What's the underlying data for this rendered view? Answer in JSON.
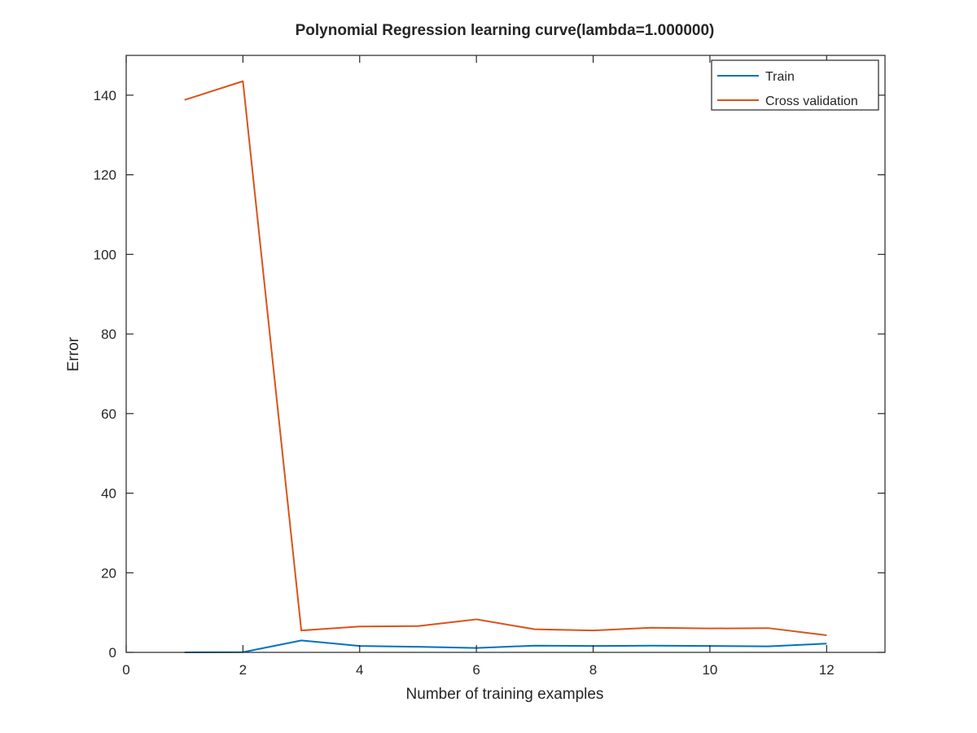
{
  "chart_data": {
    "type": "line",
    "title": "Polynomial Regression learning curve(lambda=1.000000)",
    "xlabel": "Number of training examples",
    "ylabel": "Error",
    "xlim": [
      0,
      13
    ],
    "ylim": [
      0,
      150
    ],
    "xticks": [
      0,
      2,
      4,
      6,
      8,
      10,
      12
    ],
    "yticks": [
      0,
      20,
      40,
      60,
      80,
      100,
      120,
      140
    ],
    "grid": false,
    "legend_position": "top-right",
    "x": [
      1,
      2,
      3,
      4,
      5,
      6,
      7,
      8,
      9,
      10,
      11,
      12
    ],
    "series": [
      {
        "name": "Train",
        "color": "#0072BD",
        "values": [
          0.0,
          0.05,
          3.0,
          1.6,
          1.4,
          1.1,
          1.7,
          1.6,
          1.7,
          1.6,
          1.5,
          2.2
        ]
      },
      {
        "name": "Cross validation",
        "color": "#D95319",
        "values": [
          138.8,
          143.5,
          5.5,
          6.5,
          6.6,
          8.3,
          5.8,
          5.5,
          6.2,
          6.0,
          6.1,
          4.3
        ]
      }
    ]
  }
}
